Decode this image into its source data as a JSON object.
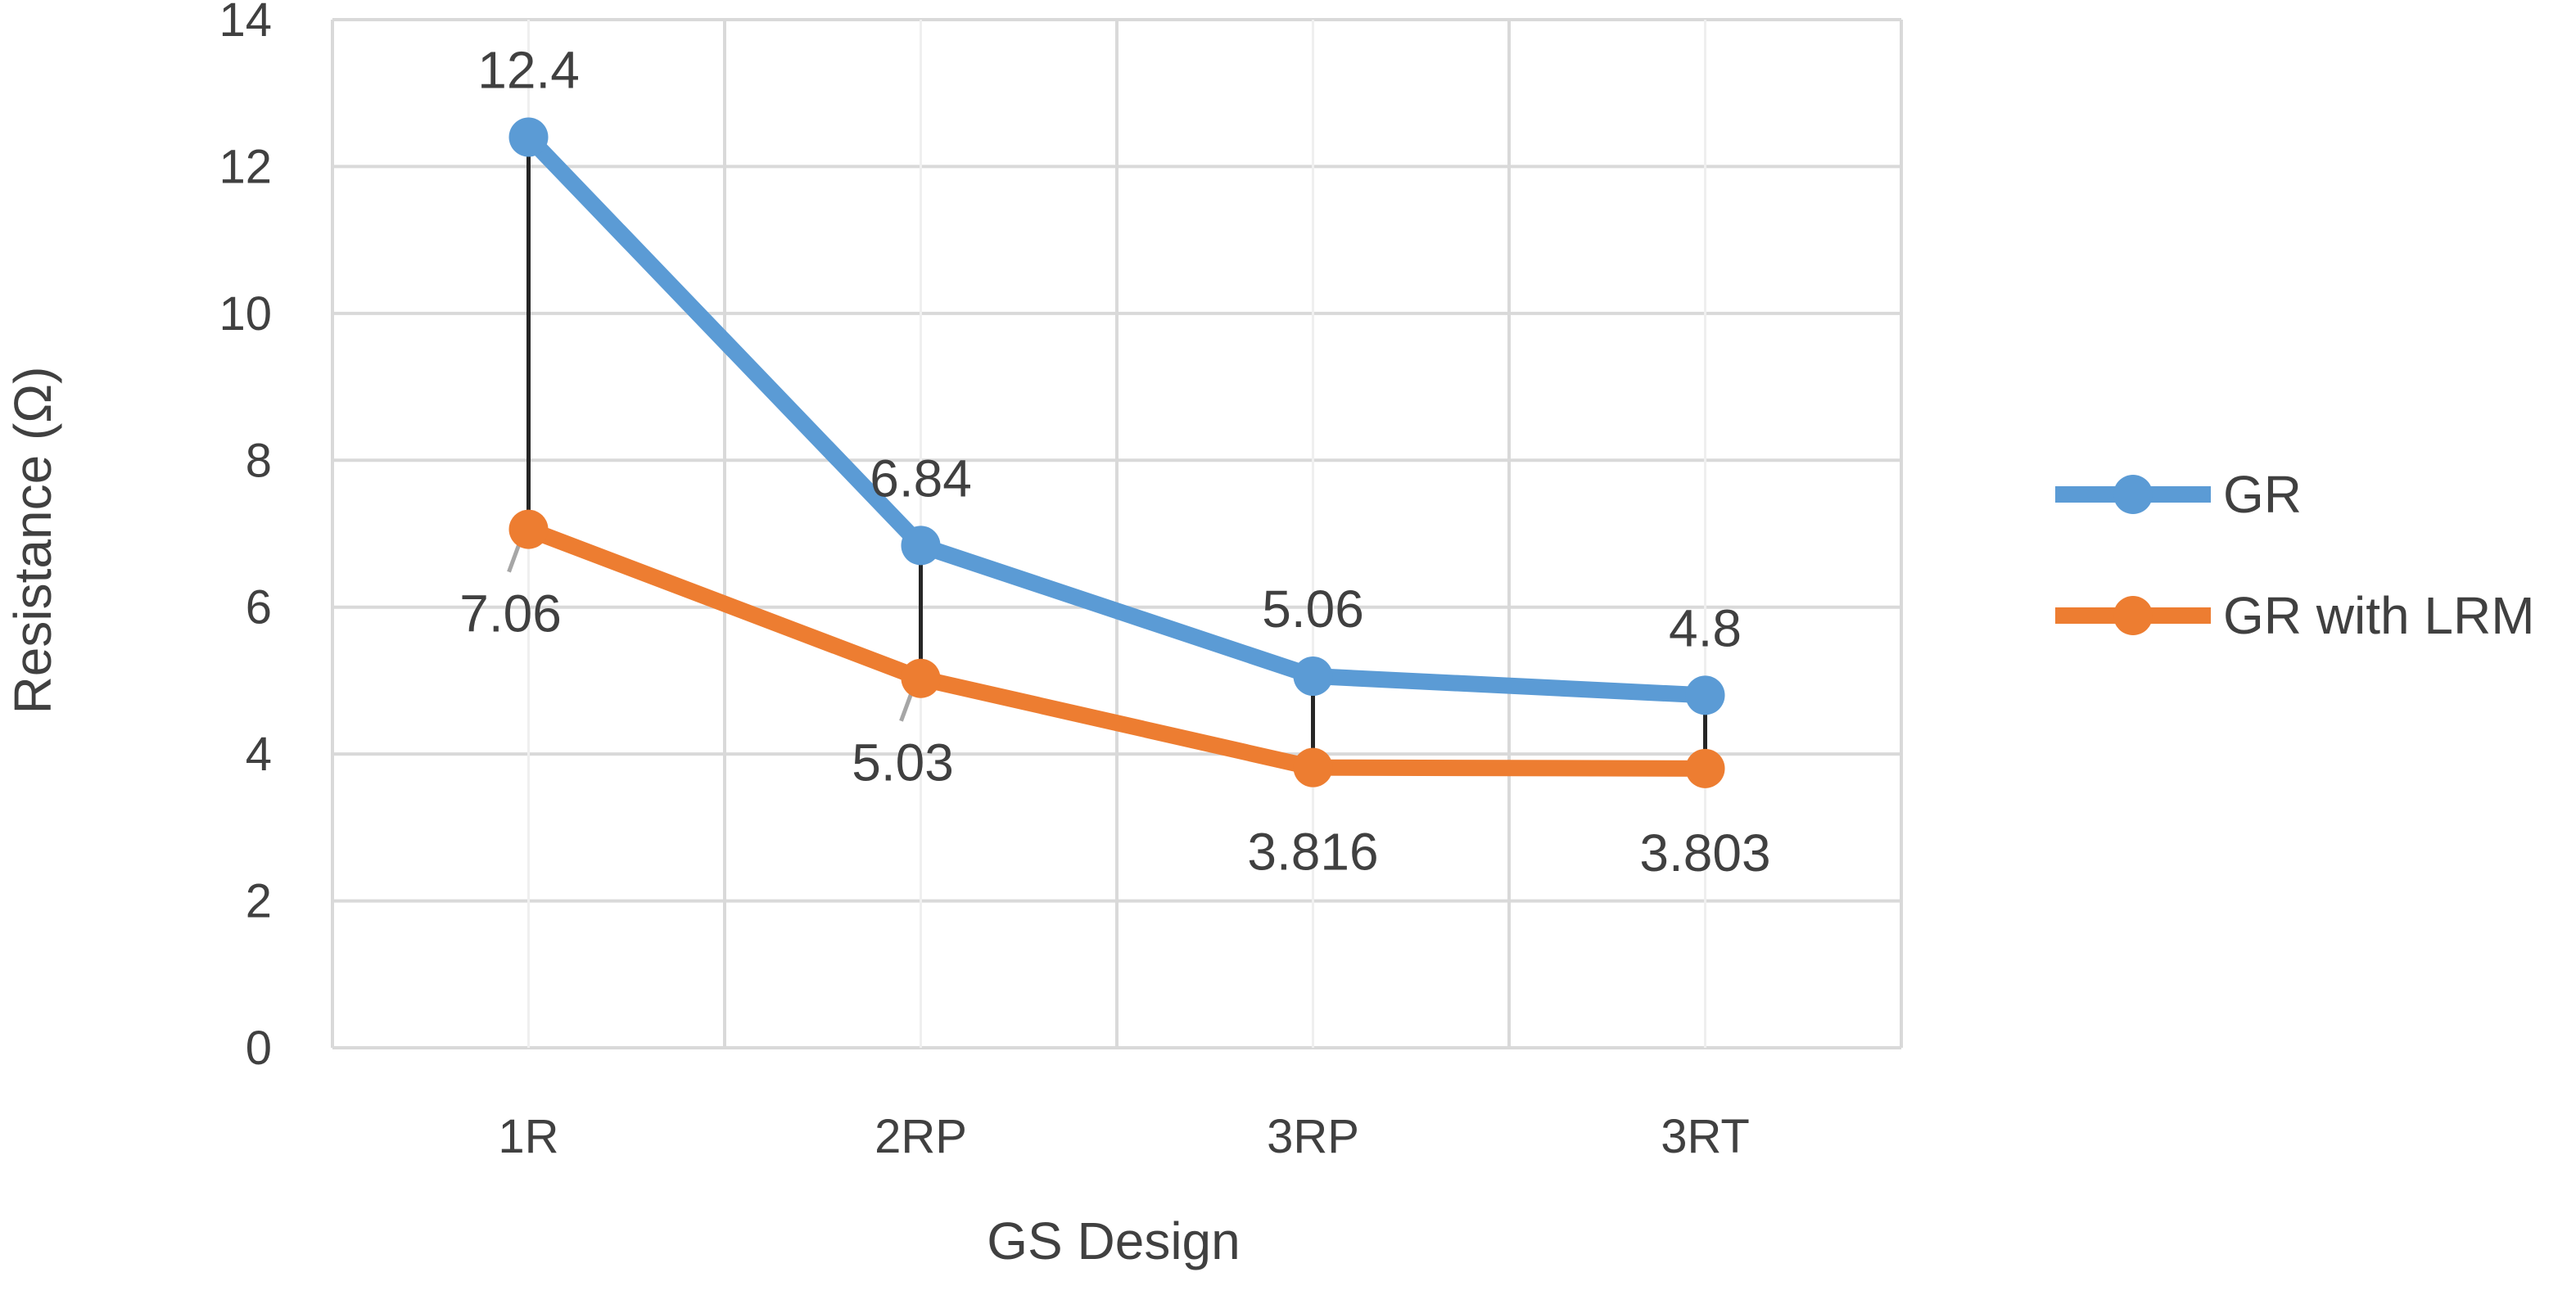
{
  "chart_data": {
    "type": "line",
    "title": "",
    "xlabel": "GS Design",
    "ylabel": "Resistance (Ω)",
    "categories": [
      "1R",
      "2RP",
      "3RP",
      "3RT"
    ],
    "ylim": [
      0,
      14
    ],
    "yticks": [
      "0",
      "2",
      "4",
      "6",
      "8",
      "10",
      "12",
      "14"
    ],
    "grid": true,
    "legend_position": "right",
    "drop_lines": true,
    "series": [
      {
        "name": "GR",
        "color": "#5B9BD5",
        "values": [
          12.4,
          6.84,
          5.06,
          4.8
        ],
        "labels": [
          "12.4",
          "6.84",
          "5.06",
          "4.8"
        ]
      },
      {
        "name": "GR with LRM",
        "color": "#ED7D31",
        "values": [
          7.06,
          5.03,
          3.816,
          3.803
        ],
        "labels": [
          "7.06",
          "5.03",
          "3.816",
          "3.803"
        ]
      }
    ]
  }
}
